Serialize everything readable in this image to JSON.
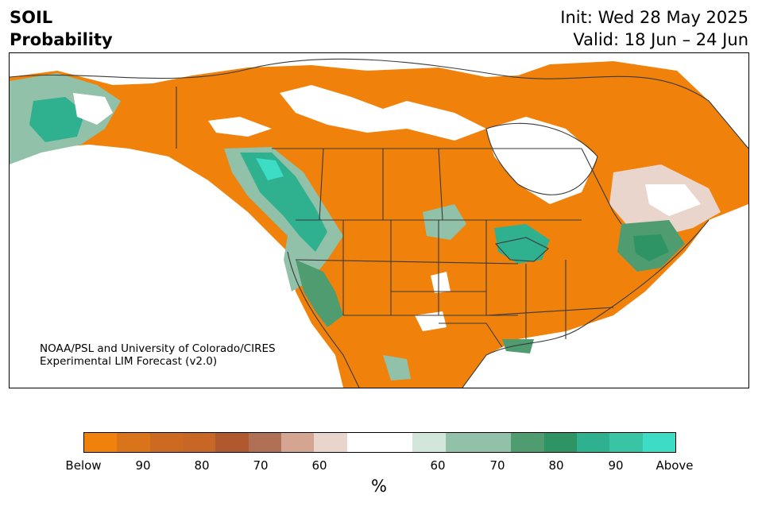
{
  "header": {
    "variable": "SOIL",
    "product": "Probability",
    "init": "Init: Wed 28 May 2025",
    "valid": "Valid: 18 Jun – 24 Jun"
  },
  "map": {
    "region": "North America",
    "credit_line1": "NOAA/PSL and University of Colorado/CIRES",
    "credit_line2": "Experimental LIM Forecast (v2.0)"
  },
  "colorbar": {
    "unit": "%",
    "colors": [
      "#f0820c",
      "#d9741a",
      "#cc6a22",
      "#c76625",
      "#b0592f",
      "#b07055",
      "#d4a590",
      "#ead5cc",
      "#ffffff",
      "#ffffff",
      "#d2e6dc",
      "#91c1a8",
      "#91c1a8",
      "#4e9c70",
      "#2e9466",
      "#2fb08e",
      "#39c4a5",
      "#3cdcc5"
    ],
    "tick_labels": [
      "Below",
      "90",
      "80",
      "70",
      "60",
      "60",
      "70",
      "80",
      "90",
      "Above"
    ]
  },
  "colors": {
    "below": "#f0820c",
    "above": "#3cdcc5",
    "boundary": "#3a3a3a"
  }
}
